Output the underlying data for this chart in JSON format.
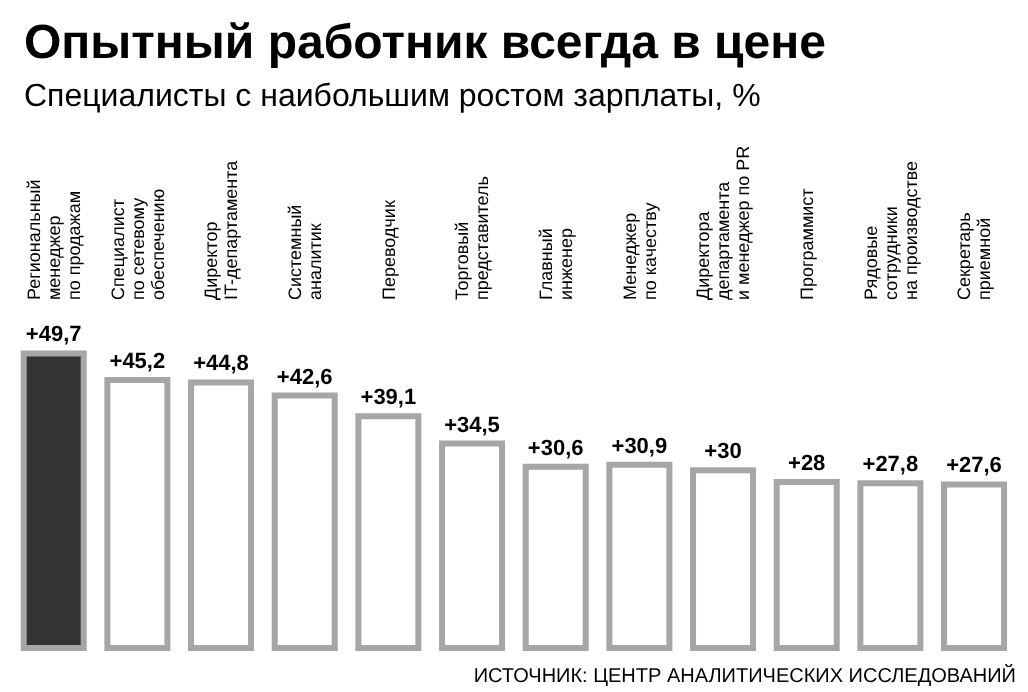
{
  "chart_data": {
    "type": "bar",
    "title": "Опытный работник всегда в цене",
    "subtitle": "Специалисты с наибольшим ростом зарплаты, %",
    "categories": [
      "Региональный\nменеджер\nпо продажам",
      "Специалист\nпо сетевому\nобеспечению",
      "Директор\nIT-департамента",
      "Системный\nаналитик",
      "Переводчик",
      "Торговый\nпредставитель",
      "Главный\nинженер",
      "Менеджер\nпо качеству",
      "Директора\nдепартамента\nи менеджер по PR",
      "Программист",
      "Рядовые\nсотрудники\nна производстве",
      "Секретарь\nприемной"
    ],
    "values": [
      49.7,
      45.2,
      44.8,
      42.6,
      39.1,
      34.5,
      30.6,
      30.9,
      30,
      28,
      27.8,
      27.6
    ],
    "colors": [
      "#333333",
      "#ffffff",
      "#ffffff",
      "#ffffff",
      "#ffffff",
      "#ffffff",
      "#ffffff",
      "#ffffff",
      "#ffffff",
      "#ffffff",
      "#ffffff",
      "#ffffff"
    ],
    "value_labels": [
      "+49,7",
      "+45,2",
      "+44,8",
      "+42,6",
      "+39,1",
      "+34,5",
      "+30,6",
      "+30,9",
      "+30",
      "+28",
      "+27,8",
      "+27,6"
    ],
    "annotations": [
      "ИСТОЧНИК: ЦЕНТР АНАЛИТИЧЕСКИХ ИССЛЕДОВАНИЙ"
    ]
  }
}
